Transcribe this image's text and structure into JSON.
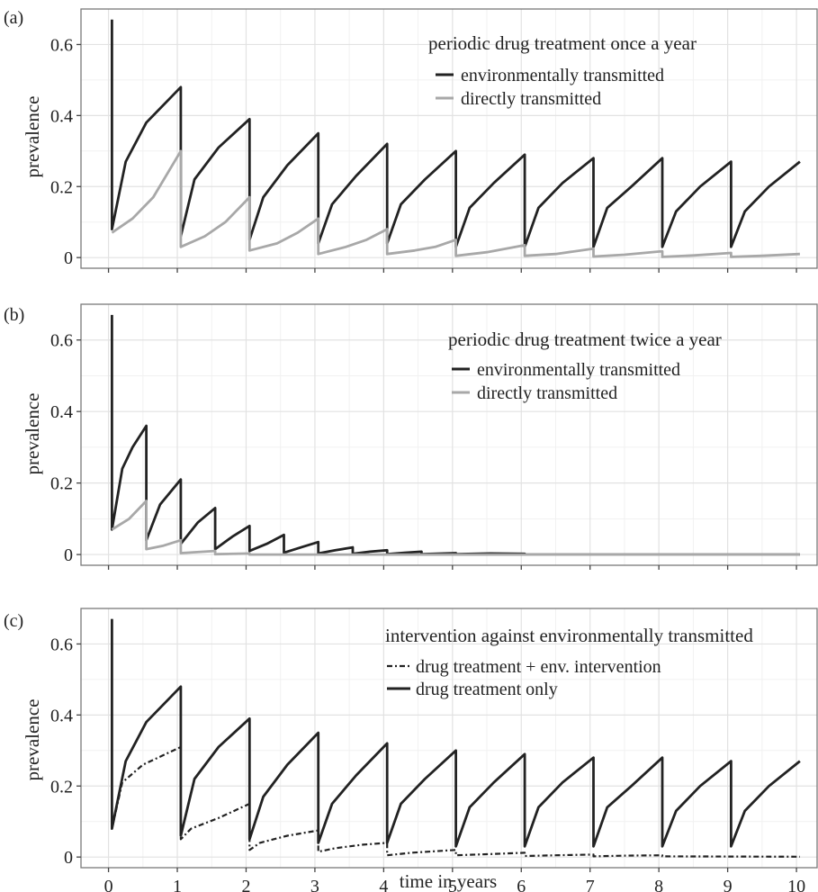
{
  "figure": {
    "x_axis_title": "time in years",
    "x_tick_labels": [
      "0",
      "1",
      "2",
      "3",
      "4",
      "5",
      "6",
      "7",
      "8",
      "9",
      "10"
    ]
  },
  "chart_data": [
    {
      "type": "line",
      "panel_label": "(a)",
      "legend_title": "periodic drug treatment once a year",
      "legend_position": "top-right",
      "ylabel": "prevalence",
      "xlabel": "",
      "xlim": [
        -0.4,
        10.3
      ],
      "ylim": [
        -0.03,
        0.7
      ],
      "y_ticks": [
        0,
        0.2,
        0.4,
        0.6
      ],
      "y_tick_labels": [
        "0",
        "0.2",
        "0.4",
        "0.6"
      ],
      "x_ticks": [
        0,
        1,
        2,
        3,
        4,
        5,
        6,
        7,
        8,
        9,
        10
      ],
      "grid": true,
      "series": [
        {
          "name": "environmentally transmitted",
          "color": "#222222",
          "style": "solid",
          "x": [
            0.05,
            0.05,
            0.05,
            0.25,
            0.55,
            1.05,
            1.05,
            1.25,
            1.6,
            2.05,
            2.05,
            2.25,
            2.6,
            3.05,
            3.05,
            3.25,
            3.6,
            4.05,
            4.05,
            4.25,
            4.6,
            5.05,
            5.05,
            5.25,
            5.6,
            6.05,
            6.05,
            6.25,
            6.6,
            7.05,
            7.05,
            7.25,
            7.6,
            8.05,
            8.05,
            8.25,
            8.6,
            9.05,
            9.05,
            9.25,
            9.6,
            10.05
          ],
          "y": [
            0.67,
            0.67,
            0.08,
            0.27,
            0.38,
            0.48,
            0.06,
            0.22,
            0.31,
            0.39,
            0.05,
            0.17,
            0.26,
            0.35,
            0.04,
            0.15,
            0.23,
            0.32,
            0.04,
            0.15,
            0.22,
            0.3,
            0.03,
            0.14,
            0.21,
            0.29,
            0.03,
            0.14,
            0.21,
            0.28,
            0.03,
            0.14,
            0.2,
            0.28,
            0.03,
            0.13,
            0.2,
            0.27,
            0.03,
            0.13,
            0.2,
            0.27
          ]
        },
        {
          "name": "directly transmitted",
          "color": "#a8a8a8",
          "style": "solid",
          "x": [
            0.05,
            0.35,
            0.65,
            1.05,
            1.05,
            1.4,
            1.7,
            2.05,
            2.05,
            2.45,
            2.75,
            3.05,
            3.05,
            3.45,
            3.75,
            4.05,
            4.05,
            4.45,
            4.75,
            5.05,
            5.05,
            5.5,
            6.05,
            6.05,
            6.5,
            7.05,
            7.05,
            7.5,
            8.05,
            8.05,
            8.5,
            9.05,
            9.05,
            9.5,
            10.05
          ],
          "y": [
            0.07,
            0.11,
            0.17,
            0.3,
            0.03,
            0.06,
            0.1,
            0.17,
            0.02,
            0.04,
            0.07,
            0.11,
            0.01,
            0.03,
            0.05,
            0.08,
            0.01,
            0.02,
            0.03,
            0.05,
            0.005,
            0.015,
            0.035,
            0.005,
            0.01,
            0.025,
            0.003,
            0.008,
            0.018,
            0.002,
            0.006,
            0.013,
            0.002,
            0.005,
            0.01
          ]
        }
      ]
    },
    {
      "type": "line",
      "panel_label": "(b)",
      "legend_title": "periodic drug treatment twice a year",
      "legend_position": "top-right",
      "ylabel": "prevalence",
      "xlabel": "",
      "xlim": [
        -0.4,
        10.3
      ],
      "ylim": [
        -0.03,
        0.7
      ],
      "y_ticks": [
        0,
        0.2,
        0.4,
        0.6
      ],
      "y_tick_labels": [
        "0",
        "0.2",
        "0.4",
        "0.6"
      ],
      "x_ticks": [
        0,
        1,
        2,
        3,
        4,
        5,
        6,
        7,
        8,
        9,
        10
      ],
      "grid": true,
      "series": [
        {
          "name": "environmentally transmitted",
          "color": "#222222",
          "style": "solid",
          "x": [
            0.05,
            0.05,
            0.05,
            0.2,
            0.35,
            0.55,
            0.55,
            0.75,
            1.05,
            1.05,
            1.3,
            1.55,
            1.55,
            1.8,
            2.05,
            2.05,
            2.3,
            2.55,
            2.55,
            2.8,
            3.05,
            3.05,
            3.3,
            3.55,
            3.55,
            3.8,
            4.05,
            4.05,
            4.3,
            4.55,
            4.55,
            5.05,
            5.05,
            5.55,
            6.05,
            6.05,
            6.55,
            10.05
          ],
          "y": [
            0.67,
            0.67,
            0.07,
            0.24,
            0.3,
            0.36,
            0.04,
            0.14,
            0.21,
            0.03,
            0.09,
            0.13,
            0.015,
            0.05,
            0.08,
            0.01,
            0.03,
            0.055,
            0.005,
            0.02,
            0.035,
            0.003,
            0.012,
            0.02,
            0.002,
            0.008,
            0.012,
            0.001,
            0.005,
            0.008,
            0.001,
            0.004,
            0.001,
            0.003,
            0.002,
            0.0,
            0.0,
            0.0
          ]
        },
        {
          "name": "directly transmitted",
          "color": "#a8a8a8",
          "style": "solid",
          "x": [
            0.05,
            0.3,
            0.55,
            0.55,
            0.8,
            1.05,
            1.05,
            1.55,
            1.55,
            2.05,
            2.05,
            10.05
          ],
          "y": [
            0.07,
            0.1,
            0.15,
            0.015,
            0.025,
            0.04,
            0.004,
            0.01,
            0.001,
            0.003,
            0.0,
            0.0
          ]
        }
      ]
    },
    {
      "type": "line",
      "panel_label": "(c)",
      "legend_title": "intervention against environmentally transmitted",
      "legend_position": "top-right",
      "ylabel": "prevalence",
      "xlabel": "time in years",
      "xlim": [
        -0.4,
        10.3
      ],
      "ylim": [
        -0.03,
        0.7
      ],
      "y_ticks": [
        0,
        0.2,
        0.4,
        0.6
      ],
      "y_tick_labels": [
        "0",
        "0.2",
        "0.4",
        "0.6"
      ],
      "x_ticks": [
        0,
        1,
        2,
        3,
        4,
        5,
        6,
        7,
        8,
        9,
        10
      ],
      "x_tick_labels": [
        "0",
        "1",
        "2",
        "3",
        "4",
        "5",
        "6",
        "7",
        "8",
        "9",
        "10"
      ],
      "grid": true,
      "series": [
        {
          "name": "drug treatment + env. intervention",
          "color": "#222222",
          "style": "dotdash",
          "x": [
            0.05,
            0.05,
            0.05,
            0.2,
            0.5,
            1.05,
            1.05,
            1.2,
            1.6,
            2.05,
            2.05,
            2.2,
            2.6,
            3.05,
            3.05,
            3.3,
            3.7,
            4.05,
            4.05,
            4.4,
            5.05,
            5.05,
            5.5,
            6.05,
            6.05,
            6.5,
            7.05,
            7.05,
            7.5,
            8.05,
            8.05,
            10.05
          ],
          "y": [
            0.67,
            0.67,
            0.08,
            0.21,
            0.26,
            0.31,
            0.05,
            0.08,
            0.11,
            0.15,
            0.02,
            0.04,
            0.06,
            0.075,
            0.015,
            0.025,
            0.035,
            0.04,
            0.005,
            0.012,
            0.02,
            0.005,
            0.008,
            0.012,
            0.003,
            0.005,
            0.007,
            0.002,
            0.004,
            0.005,
            0.002,
            0.001
          ]
        },
        {
          "name": "drug treatment only",
          "color": "#222222",
          "style": "solid",
          "x": [
            0.05,
            0.05,
            0.05,
            0.25,
            0.55,
            1.05,
            1.05,
            1.25,
            1.6,
            2.05,
            2.05,
            2.25,
            2.6,
            3.05,
            3.05,
            3.25,
            3.6,
            4.05,
            4.05,
            4.25,
            4.6,
            5.05,
            5.05,
            5.25,
            5.6,
            6.05,
            6.05,
            6.25,
            6.6,
            7.05,
            7.05,
            7.25,
            7.6,
            8.05,
            8.05,
            8.25,
            8.6,
            9.05,
            9.05,
            9.25,
            9.6,
            10.05
          ],
          "y": [
            0.67,
            0.67,
            0.08,
            0.27,
            0.38,
            0.48,
            0.06,
            0.22,
            0.31,
            0.39,
            0.05,
            0.17,
            0.26,
            0.35,
            0.04,
            0.15,
            0.23,
            0.32,
            0.04,
            0.15,
            0.22,
            0.3,
            0.03,
            0.14,
            0.21,
            0.29,
            0.03,
            0.14,
            0.21,
            0.28,
            0.03,
            0.14,
            0.2,
            0.28,
            0.03,
            0.13,
            0.2,
            0.27,
            0.03,
            0.13,
            0.2,
            0.27
          ]
        }
      ]
    }
  ]
}
